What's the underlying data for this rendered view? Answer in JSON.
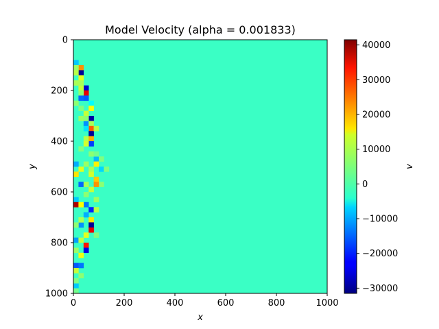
{
  "chart_data": {
    "type": "heatmap",
    "title": "Model Velocity (alpha = 0.001833)",
    "xlabel": "x",
    "ylabel": "y",
    "xlim": [
      0,
      1000
    ],
    "ylim": [
      1000,
      0
    ],
    "xticks": [
      0,
      200,
      400,
      600,
      800,
      1000
    ],
    "yticks": [
      0,
      200,
      400,
      600,
      800,
      1000
    ],
    "grid": false,
    "colormap": "jet",
    "colorbar": {
      "label": "v",
      "vmin": -31500,
      "vmax": 41500,
      "ticks": [
        -30000,
        -20000,
        -10000,
        0,
        10000,
        20000,
        30000,
        40000
      ],
      "tick_labels": [
        "−30000",
        "−20000",
        "−10000",
        "0",
        "10000",
        "20000",
        "30000",
        "40000"
      ]
    },
    "background_value": 0,
    "cell_size": 20,
    "cells": [
      {
        "x": 0,
        "y": 80,
        "v": -8000
      },
      {
        "x": 20,
        "y": 100,
        "v": 22000
      },
      {
        "x": 20,
        "y": 120,
        "v": -30000
      },
      {
        "x": 20,
        "y": 140,
        "v": 12000
      },
      {
        "x": 0,
        "y": 160,
        "v": 8000
      },
      {
        "x": 40,
        "y": 180,
        "v": -26000
      },
      {
        "x": 20,
        "y": 180,
        "v": 10000
      },
      {
        "x": 40,
        "y": 200,
        "v": 34000
      },
      {
        "x": 20,
        "y": 200,
        "v": 6000
      },
      {
        "x": 20,
        "y": 220,
        "v": -15000
      },
      {
        "x": 40,
        "y": 220,
        "v": -16000
      },
      {
        "x": 60,
        "y": 240,
        "v": -4000
      },
      {
        "x": 60,
        "y": 260,
        "v": 14000
      },
      {
        "x": 40,
        "y": 280,
        "v": 10000
      },
      {
        "x": 60,
        "y": 300,
        "v": -29000
      },
      {
        "x": 40,
        "y": 320,
        "v": -12000
      },
      {
        "x": 60,
        "y": 320,
        "v": 8000
      },
      {
        "x": 60,
        "y": 340,
        "v": 26000
      },
      {
        "x": 40,
        "y": 340,
        "v": -6000
      },
      {
        "x": 60,
        "y": 360,
        "v": -30000
      },
      {
        "x": 40,
        "y": 380,
        "v": 9000
      },
      {
        "x": 60,
        "y": 380,
        "v": 20000
      },
      {
        "x": 60,
        "y": 400,
        "v": -18000
      },
      {
        "x": 40,
        "y": 400,
        "v": 11000
      },
      {
        "x": 80,
        "y": 460,
        "v": -9000
      },
      {
        "x": 0,
        "y": 480,
        "v": -10000
      },
      {
        "x": 80,
        "y": 480,
        "v": 15000
      },
      {
        "x": 100,
        "y": 500,
        "v": -7000
      },
      {
        "x": 20,
        "y": 500,
        "v": 12000
      },
      {
        "x": 0,
        "y": 520,
        "v": 16000
      },
      {
        "x": 60,
        "y": 520,
        "v": 11000
      },
      {
        "x": 80,
        "y": 540,
        "v": 18000
      },
      {
        "x": 20,
        "y": 560,
        "v": -15000
      },
      {
        "x": 80,
        "y": 560,
        "v": 22000
      },
      {
        "x": 40,
        "y": 560,
        "v": 8000
      },
      {
        "x": 60,
        "y": 580,
        "v": 10000
      },
      {
        "x": 0,
        "y": 620,
        "v": -8000
      },
      {
        "x": 0,
        "y": 640,
        "v": 38000
      },
      {
        "x": 40,
        "y": 640,
        "v": -14000
      },
      {
        "x": 20,
        "y": 640,
        "v": 14000
      },
      {
        "x": 60,
        "y": 660,
        "v": -20000
      },
      {
        "x": 80,
        "y": 660,
        "v": 9000
      },
      {
        "x": 40,
        "y": 680,
        "v": -10000
      },
      {
        "x": 60,
        "y": 700,
        "v": 16000
      },
      {
        "x": 20,
        "y": 720,
        "v": -12000
      },
      {
        "x": 60,
        "y": 720,
        "v": -30000
      },
      {
        "x": 60,
        "y": 740,
        "v": 34000
      },
      {
        "x": 40,
        "y": 760,
        "v": 12000
      },
      {
        "x": 0,
        "y": 780,
        "v": -11000
      },
      {
        "x": 20,
        "y": 780,
        "v": 9000
      },
      {
        "x": 40,
        "y": 800,
        "v": 31000
      },
      {
        "x": 40,
        "y": 820,
        "v": -24000
      },
      {
        "x": 20,
        "y": 840,
        "v": 13000
      },
      {
        "x": 0,
        "y": 880,
        "v": -16000
      },
      {
        "x": 20,
        "y": 880,
        "v": -14000
      },
      {
        "x": 0,
        "y": 900,
        "v": 10000
      },
      {
        "x": 0,
        "y": 960,
        "v": -8000
      },
      {
        "x": 0,
        "y": 100,
        "v": 7000
      },
      {
        "x": 0,
        "y": 120,
        "v": 9000
      },
      {
        "x": 20,
        "y": 160,
        "v": 8000
      },
      {
        "x": 0,
        "y": 240,
        "v": 6000
      },
      {
        "x": 20,
        "y": 260,
        "v": 5000
      },
      {
        "x": 20,
        "y": 300,
        "v": 7000
      },
      {
        "x": 40,
        "y": 300,
        "v": 6000
      },
      {
        "x": 80,
        "y": 340,
        "v": 9000
      },
      {
        "x": 20,
        "y": 420,
        "v": 5000
      },
      {
        "x": 60,
        "y": 440,
        "v": 6000
      },
      {
        "x": 40,
        "y": 480,
        "v": 7000
      },
      {
        "x": 60,
        "y": 500,
        "v": 8000
      },
      {
        "x": 120,
        "y": 500,
        "v": 5000
      },
      {
        "x": 40,
        "y": 600,
        "v": 6000
      },
      {
        "x": 80,
        "y": 620,
        "v": 7000
      },
      {
        "x": 20,
        "y": 700,
        "v": 8000
      },
      {
        "x": 0,
        "y": 720,
        "v": 6000
      },
      {
        "x": 80,
        "y": 760,
        "v": 5000
      },
      {
        "x": 0,
        "y": 820,
        "v": 7000
      },
      {
        "x": 20,
        "y": 920,
        "v": 6000
      },
      {
        "x": 0,
        "y": 940,
        "v": 5000
      },
      {
        "x": 0,
        "y": 980,
        "v": 4000
      },
      {
        "x": 100,
        "y": 560,
        "v": 6000
      },
      {
        "x": 80,
        "y": 440,
        "v": 4000
      },
      {
        "x": 100,
        "y": 460,
        "v": 5000
      }
    ]
  }
}
